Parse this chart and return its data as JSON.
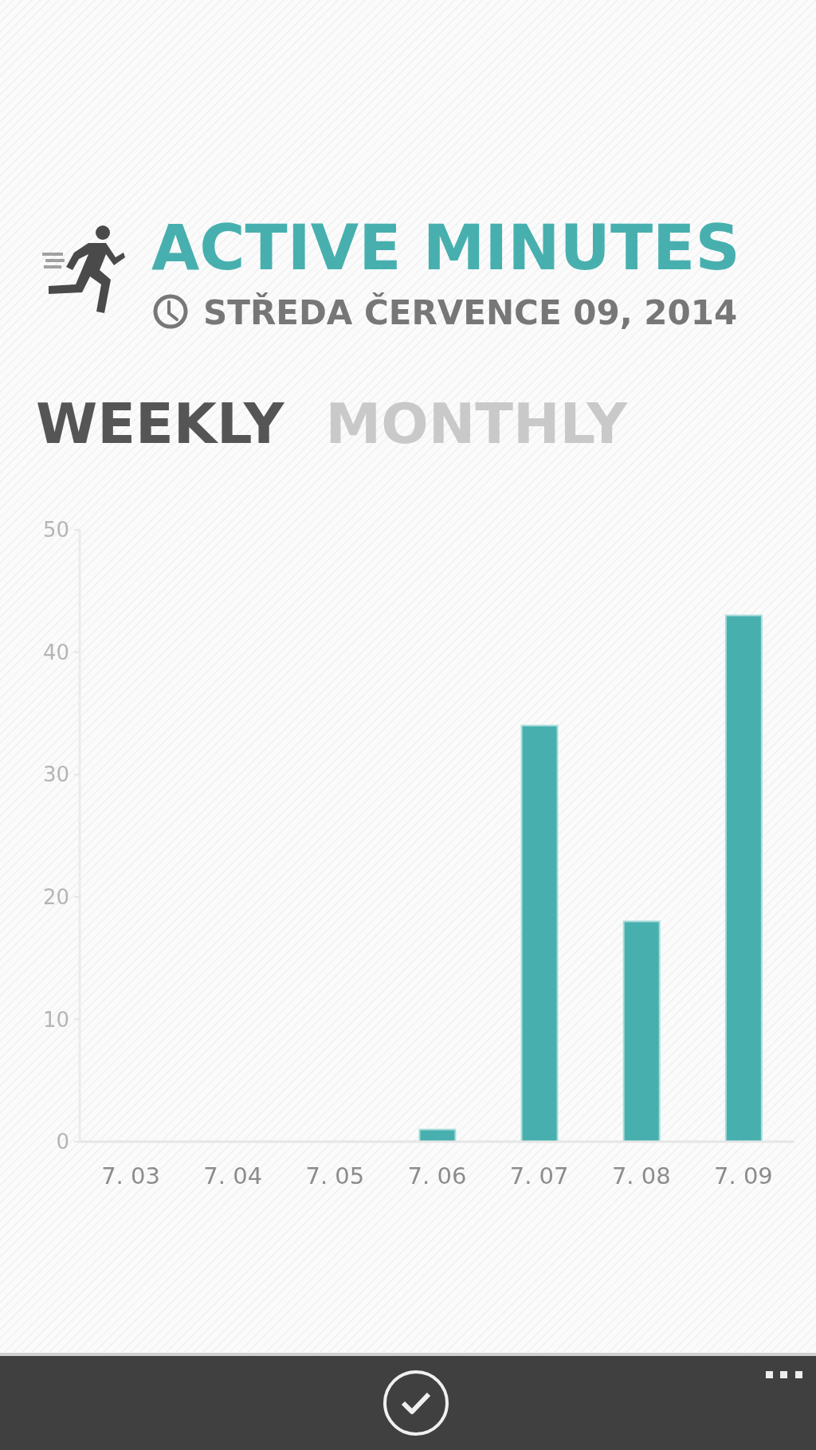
{
  "chart_data": {
    "type": "bar",
    "title": "ACTIVE MINUTES",
    "subtitle": "STŘEDA ČERVENCE 09, 2014",
    "annotations": [
      "WEEKLY",
      "MONTHLY"
    ],
    "categories": [
      "7. 03",
      "7. 04",
      "7. 05",
      "7. 06",
      "7. 07",
      "7. 08",
      "7. 09"
    ],
    "values": [
      0,
      0,
      0,
      1,
      34,
      18,
      43
    ],
    "color": "#47b0af",
    "ylim": [
      0,
      50
    ],
    "yticks": [
      0,
      10,
      20,
      30,
      40,
      50
    ]
  }
}
